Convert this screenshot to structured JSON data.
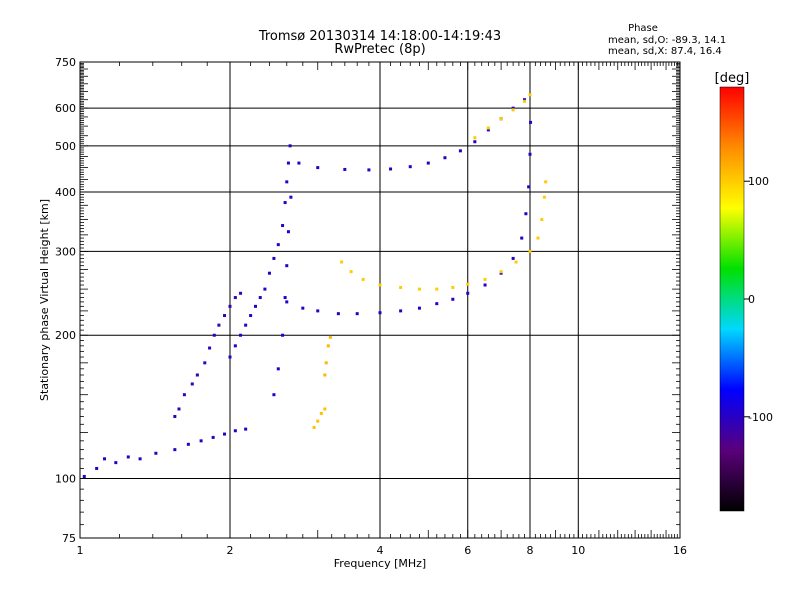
{
  "chart_data": {
    "type": "scatter",
    "title": "Tromsø 20130314 14:18:00-14:19:43",
    "subtitle": "RwPretec (8p)",
    "xlabel": "Frequency [MHz]",
    "ylabel": "Stationary phase Virtual Height [km]",
    "x_scale": "log",
    "y_scale": "log",
    "xlim": [
      1,
      16
    ],
    "ylim": [
      75,
      750
    ],
    "grid": true,
    "x_ticks": [
      1,
      2,
      4,
      6,
      8,
      10,
      16
    ],
    "y_ticks": [
      75,
      100,
      200,
      300,
      400,
      500,
      600,
      750
    ],
    "stats": {
      "title": "Phase",
      "line_o": "mean, sd,O: -89.3, 14.1",
      "line_x": "mean, sd,X:  87.4, 16.4"
    },
    "colorbar": {
      "label": "[deg]",
      "ticks": [
        100,
        0,
        -100
      ],
      "range": [
        -180,
        180
      ],
      "colors": [
        "#000000",
        "#5a007a",
        "#0000ff",
        "#00d8ff",
        "#00e000",
        "#ffff00",
        "#ff8c00",
        "#ff0000"
      ]
    },
    "series": [
      {
        "phase": -100,
        "points": [
          [
            1.02,
            101
          ],
          [
            1.08,
            105
          ],
          [
            1.12,
            110
          ],
          [
            1.18,
            108
          ],
          [
            1.25,
            111
          ],
          [
            1.32,
            110
          ],
          [
            1.42,
            113
          ],
          [
            1.55,
            115
          ],
          [
            1.65,
            118
          ],
          [
            1.75,
            120
          ],
          [
            1.85,
            122
          ],
          [
            1.95,
            124
          ],
          [
            2.05,
            126
          ],
          [
            2.15,
            127
          ]
        ]
      },
      {
        "phase": -105,
        "points": [
          [
            1.55,
            135
          ],
          [
            1.58,
            140
          ],
          [
            1.62,
            150
          ],
          [
            1.68,
            158
          ],
          [
            1.72,
            165
          ],
          [
            1.78,
            175
          ],
          [
            1.82,
            188
          ],
          [
            1.86,
            200
          ],
          [
            1.9,
            210
          ],
          [
            1.95,
            220
          ],
          [
            2.0,
            230
          ],
          [
            2.05,
            240
          ],
          [
            2.1,
            245
          ]
        ]
      },
      {
        "phase": -100,
        "points": [
          [
            2.0,
            180
          ],
          [
            2.05,
            190
          ],
          [
            2.1,
            200
          ],
          [
            2.15,
            210
          ],
          [
            2.2,
            220
          ],
          [
            2.25,
            230
          ],
          [
            2.3,
            240
          ],
          [
            2.35,
            250
          ],
          [
            2.4,
            270
          ],
          [
            2.45,
            290
          ],
          [
            2.5,
            310
          ],
          [
            2.55,
            340
          ],
          [
            2.58,
            380
          ],
          [
            2.6,
            420
          ],
          [
            2.62,
            460
          ],
          [
            2.64,
            500
          ]
        ]
      },
      {
        "phase": -95,
        "points": [
          [
            2.45,
            150
          ],
          [
            2.5,
            170
          ],
          [
            2.55,
            200
          ],
          [
            2.58,
            240
          ],
          [
            2.6,
            280
          ],
          [
            2.62,
            330
          ],
          [
            2.65,
            390
          ]
        ]
      },
      {
        "phase": -100,
        "points": [
          [
            2.6,
            235
          ],
          [
            2.8,
            228
          ],
          [
            3.0,
            225
          ],
          [
            3.3,
            222
          ],
          [
            3.6,
            222
          ],
          [
            4.0,
            223
          ],
          [
            4.4,
            225
          ],
          [
            4.8,
            228
          ],
          [
            5.2,
            233
          ],
          [
            5.6,
            238
          ],
          [
            6.0,
            245
          ],
          [
            6.5,
            255
          ],
          [
            7.0,
            270
          ],
          [
            7.4,
            290
          ],
          [
            7.7,
            320
          ],
          [
            7.85,
            360
          ],
          [
            7.95,
            410
          ],
          [
            8.0,
            480
          ],
          [
            8.02,
            560
          ]
        ]
      },
      {
        "phase": -100,
        "points": [
          [
            2.75,
            460
          ],
          [
            3.0,
            450
          ],
          [
            3.4,
            446
          ],
          [
            3.8,
            445
          ],
          [
            4.2,
            447
          ],
          [
            4.6,
            452
          ],
          [
            5.0,
            460
          ],
          [
            5.4,
            472
          ],
          [
            5.8,
            488
          ],
          [
            6.2,
            510
          ],
          [
            6.6,
            540
          ],
          [
            7.0,
            570
          ],
          [
            7.4,
            600
          ],
          [
            7.8,
            625
          ]
        ]
      },
      {
        "phase": 100,
        "points": [
          [
            3.35,
            285
          ],
          [
            3.5,
            272
          ],
          [
            3.7,
            262
          ],
          [
            4.0,
            255
          ],
          [
            4.4,
            252
          ],
          [
            4.8,
            250
          ],
          [
            5.2,
            250
          ],
          [
            5.6,
            252
          ],
          [
            6.0,
            256
          ],
          [
            6.5,
            262
          ],
          [
            7.0,
            272
          ],
          [
            7.5,
            285
          ],
          [
            8.0,
            300
          ],
          [
            8.3,
            320
          ],
          [
            8.45,
            350
          ],
          [
            8.55,
            390
          ],
          [
            8.6,
            420
          ]
        ]
      },
      {
        "phase": 100,
        "points": [
          [
            6.2,
            520
          ],
          [
            6.6,
            545
          ],
          [
            7.0,
            570
          ],
          [
            7.4,
            595
          ],
          [
            7.8,
            620
          ],
          [
            8.0,
            640
          ]
        ]
      },
      {
        "phase": 110,
        "points": [
          [
            3.1,
            165
          ],
          [
            3.12,
            175
          ],
          [
            3.15,
            190
          ],
          [
            3.18,
            198
          ]
        ]
      },
      {
        "phase": 105,
        "points": [
          [
            2.95,
            128
          ],
          [
            3.0,
            132
          ],
          [
            3.05,
            137
          ],
          [
            3.1,
            140
          ]
        ]
      }
    ]
  }
}
